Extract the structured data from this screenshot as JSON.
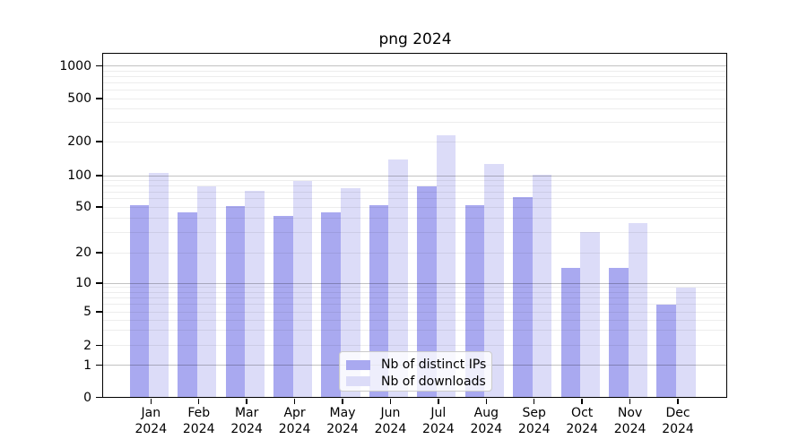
{
  "chart_data": {
    "type": "bar",
    "title": "png 2024",
    "categories": [
      "Jan 2024",
      "Feb 2024",
      "Mar 2024",
      "Apr 2024",
      "May 2024",
      "Jun 2024",
      "Jul 2024",
      "Aug 2024",
      "Sep 2024",
      "Oct 2024",
      "Nov 2024",
      "Dec 2024"
    ],
    "series": [
      {
        "name": "Nb of distinct IPs",
        "color": "#a9a9f0",
        "values": [
          52,
          45,
          51,
          42,
          45,
          52,
          79,
          52,
          62,
          14,
          14,
          6
        ]
      },
      {
        "name": "Nb of downloads",
        "color": "#dcdcf8",
        "values": [
          106,
          79,
          72,
          89,
          76,
          140,
          228,
          127,
          102,
          30,
          36,
          9
        ]
      }
    ],
    "yscale": "symlog",
    "yticks": [
      0,
      1,
      2,
      5,
      10,
      20,
      50,
      100,
      200,
      500,
      1000
    ],
    "ylim": [
      0,
      1280
    ],
    "xlabel": "",
    "ylabel": "",
    "grid": true,
    "legend_position": "lower-center-inside"
  },
  "styles": {
    "background": "#ffffff",
    "axis_color": "#000000",
    "grid_major_color": "#c2c2c2",
    "grid_minor_color": "#ebebeb",
    "legend_border_color": "#cbcbcb"
  }
}
